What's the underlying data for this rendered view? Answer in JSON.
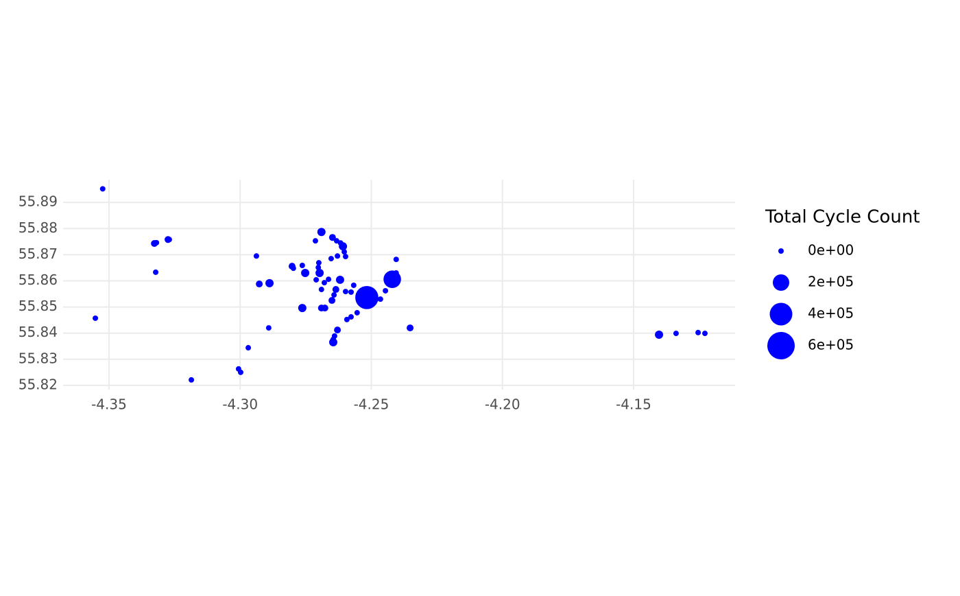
{
  "chart_data": {
    "type": "scatter",
    "color": "#0000ff",
    "grid": true,
    "xlim": [
      -4.3675,
      -4.1113
    ],
    "ylim": [
      55.8184,
      55.8987
    ],
    "xticks": [
      -4.35,
      {
        "value": -4.3,
        "label": "-4.30"
      },
      -4.25,
      {
        "value": -4.2,
        "label": "-4.20"
      },
      -4.15
    ],
    "yticks": [
      55.82,
      55.83,
      55.84,
      55.85,
      55.86,
      55.87,
      55.88,
      55.89
    ],
    "size_legend": {
      "title": "Total Cycle Count",
      "breaks": [
        {
          "value": 0,
          "label": "0e+00"
        },
        {
          "value": 200000,
          "label": "2e+05"
        },
        {
          "value": 400000,
          "label": "4e+05"
        },
        {
          "value": 600000,
          "label": "6e+05"
        }
      ]
    },
    "x": [
      -4.3524,
      -4.3552,
      -4.3327,
      -4.3319,
      -4.3275,
      -4.327,
      -4.3322,
      -4.3186,
      -4.3006,
      -4.2998,
      -4.2969,
      -4.2891,
      -4.2938,
      -4.2927,
      -4.2888,
      -4.2802,
      -4.2797,
      -4.2763,
      -4.2752,
      -4.2763,
      -4.2713,
      -4.269,
      -4.27,
      -4.2702,
      -4.2697,
      -4.271,
      -4.269,
      -4.2679,
      -4.2663,
      -4.269,
      -4.2677,
      -4.2648,
      -4.2632,
      -4.2617,
      -4.2608,
      -4.2603,
      -4.2598,
      -4.2629,
      -4.2653,
      -4.2619,
      -4.2635,
      -4.2642,
      -4.265,
      -4.2598,
      -4.2577,
      -4.2567,
      -4.2517,
      -4.2483,
      -4.2465,
      -4.2554,
      -4.2577,
      -4.2593,
      -4.2629,
      -4.264,
      -4.2645,
      -4.2645,
      -4.2446,
      -4.242,
      -4.2405,
      -4.2405,
      -4.2352,
      -4.1403,
      -4.1338,
      -4.1254,
      -4.1228
    ],
    "y": [
      55.8952,
      55.8457,
      55.8743,
      55.8746,
      55.8758,
      55.8758,
      55.8633,
      55.8221,
      55.8263,
      55.825,
      55.8344,
      55.842,
      55.8695,
      55.8588,
      55.8591,
      55.8656,
      55.8648,
      55.8659,
      55.863,
      55.8496,
      55.8753,
      55.8787,
      55.8669,
      55.8651,
      55.863,
      55.8604,
      55.8567,
      55.8593,
      55.8606,
      55.8496,
      55.8496,
      55.8766,
      55.8753,
      55.8745,
      55.8732,
      55.8711,
      55.8693,
      55.8695,
      55.8685,
      55.8604,
      55.8567,
      55.8546,
      55.8525,
      55.8559,
      55.8557,
      55.8583,
      55.8536,
      55.8528,
      55.853,
      55.8478,
      55.8462,
      55.8452,
      55.8412,
      55.8389,
      55.8376,
      55.8365,
      55.8562,
      55.8606,
      55.863,
      55.8682,
      55.842,
      55.8394,
      55.8399,
      55.8402,
      55.8399
    ],
    "size": [
      0,
      0,
      14000,
      0,
      14000,
      0,
      0,
      0,
      0,
      0,
      0,
      0,
      0,
      14000,
      31000,
      14000,
      0,
      0,
      31000,
      31000,
      0,
      31000,
      0,
      0,
      31000,
      0,
      0,
      0,
      0,
      14000,
      14000,
      14000,
      0,
      0,
      31000,
      0,
      0,
      0,
      0,
      31000,
      14000,
      0,
      14000,
      0,
      0,
      0,
      420000,
      0,
      0,
      0,
      0,
      0,
      14000,
      0,
      0,
      31000,
      0,
      230000,
      0,
      0,
      14000,
      31000,
      0,
      0,
      0
    ]
  }
}
